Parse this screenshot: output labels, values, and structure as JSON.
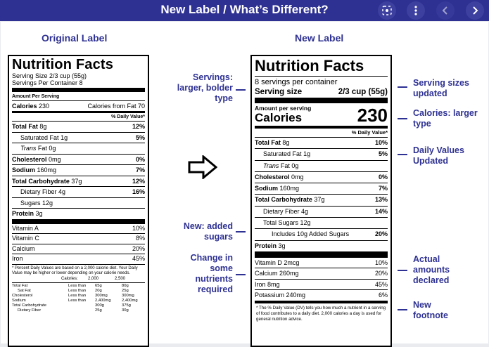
{
  "header": {
    "title": "New Label / What’s Different?"
  },
  "toolbar": {
    "zoom_icon": "zoom-lens-icon",
    "more_icon": "more-vert-icon",
    "prev_icon": "chevron-left-icon",
    "next_icon": "chevron-right-icon"
  },
  "headings": {
    "original": "Original Label",
    "new": "New Label"
  },
  "original": {
    "title": "Nutrition Facts",
    "serving_size": "Serving Size 2/3 cup (55g)",
    "servings": "Servings Per Container 8",
    "amount": "Amount Per Serving",
    "calories_label": "Calories",
    "calories_value": "230",
    "cal_fat": "Calories from Fat 70",
    "dv_header": "% Daily Value*",
    "rows": [
      {
        "name": "Total Fat",
        "amt": "8g",
        "dv": "12%",
        "bold": true,
        "indent": 0
      },
      {
        "name": "Saturated Fat",
        "amt": "1g",
        "dv": "5%",
        "bold": false,
        "indent": 1
      },
      {
        "name": "Trans",
        "amt": "Fat 0g",
        "dv": "",
        "bold": false,
        "indent": 1,
        "italic": true
      },
      {
        "name": "Cholesterol",
        "amt": "0mg",
        "dv": "0%",
        "bold": true,
        "indent": 0
      },
      {
        "name": "Sodium",
        "amt": "160mg",
        "dv": "7%",
        "bold": true,
        "indent": 0
      },
      {
        "name": "Total Carbohydrate",
        "amt": "37g",
        "dv": "12%",
        "bold": true,
        "indent": 0
      },
      {
        "name": "Dietary Fiber",
        "amt": "4g",
        "dv": "16%",
        "bold": false,
        "indent": 1
      },
      {
        "name": "Sugars",
        "amt": "12g",
        "dv": "",
        "bold": false,
        "indent": 1
      },
      {
        "name": "Protein",
        "amt": "3g",
        "dv": "",
        "bold": true,
        "indent": 0
      }
    ],
    "vitamins": [
      {
        "name": "Vitamin A",
        "dv": "10%"
      },
      {
        "name": "Vitamin C",
        "dv": "8%"
      },
      {
        "name": "Calcium",
        "dv": "20%"
      },
      {
        "name": "Iron",
        "dv": "45%"
      }
    ],
    "footnote": "* Percent Daily Values are based on a 2,000 calorie diet. Your Daily Value may be higher or lower depending on your calorie needs.",
    "fn_cal": "Calories:",
    "fn_2000": "2,000",
    "fn_2500": "2,500",
    "fn_rows": [
      {
        "n": "Total Fat",
        "c": "Less than",
        "a": "65g",
        "b": "80g"
      },
      {
        "n": "Sat Fat",
        "c": "Less than",
        "a": "20g",
        "b": "25g"
      },
      {
        "n": "Cholesterol",
        "c": "Less than",
        "a": "300mg",
        "b": "300mg"
      },
      {
        "n": "Sodium",
        "c": "Less than",
        "a": "2,400mg",
        "b": "2,400mg"
      },
      {
        "n": "Total Carbohydrate",
        "c": "",
        "a": "300g",
        "b": "375g"
      },
      {
        "n": "Dietary Fiber",
        "c": "",
        "a": "25g",
        "b": "30g"
      }
    ]
  },
  "newlabel": {
    "title": "Nutrition Facts",
    "servings": "8 servings per container",
    "serving_size_label": "Serving size",
    "serving_size_value": "2/3 cup (55g)",
    "amount": "Amount per serving",
    "calories_label": "Calories",
    "calories_value": "230",
    "dv_header": "% Daily Value*",
    "rows": [
      {
        "name": "Total Fat",
        "amt": "8g",
        "dv": "10%",
        "bold": true,
        "indent": 0
      },
      {
        "name": "Saturated Fat",
        "amt": "1g",
        "dv": "5%",
        "bold": false,
        "indent": 1
      },
      {
        "name": "Trans",
        "amt": "Fat 0g",
        "dv": "",
        "bold": false,
        "indent": 1,
        "italic": true
      },
      {
        "name": "Cholesterol",
        "amt": "0mg",
        "dv": "0%",
        "bold": true,
        "indent": 0
      },
      {
        "name": "Sodium",
        "amt": "160mg",
        "dv": "7%",
        "bold": true,
        "indent": 0
      },
      {
        "name": "Total Carbohydrate",
        "amt": "37g",
        "dv": "13%",
        "bold": true,
        "indent": 0
      },
      {
        "name": "Dietary Fiber",
        "amt": "4g",
        "dv": "14%",
        "bold": false,
        "indent": 1
      },
      {
        "name": "Total Sugars",
        "amt": "12g",
        "dv": "",
        "bold": false,
        "indent": 1
      },
      {
        "name": "Includes 10g Added Sugars",
        "amt": "",
        "dv": "20%",
        "bold": false,
        "indent": 2
      },
      {
        "name": "Protein",
        "amt": "3g",
        "dv": "",
        "bold": true,
        "indent": 0
      }
    ],
    "vitamins": [
      {
        "name": "Vitamin D 2mcg",
        "dv": "10%"
      },
      {
        "name": "Calcium 260mg",
        "dv": "20%"
      },
      {
        "name": "Iron 8mg",
        "dv": "45%"
      },
      {
        "name": "Potassium 240mg",
        "dv": "6%"
      }
    ],
    "footnote": "* The % Daily Value (DV) tells you how much a nutrient in a serving of food contributes to a daily diet. 2,000 calories a day is used for general nutrition advice."
  },
  "annotations": {
    "servings": "Servings: larger, bolder type",
    "added": "New: added sugars",
    "nutrients": "Change in some nutrients required",
    "serving_sizes": "Serving sizes updated",
    "calories": "Calories: larger type",
    "daily": "Daily Values Updated",
    "actual": "Actual amounts declared",
    "footnote": "New footnote"
  },
  "colors": {
    "accent": "#2e3192"
  }
}
